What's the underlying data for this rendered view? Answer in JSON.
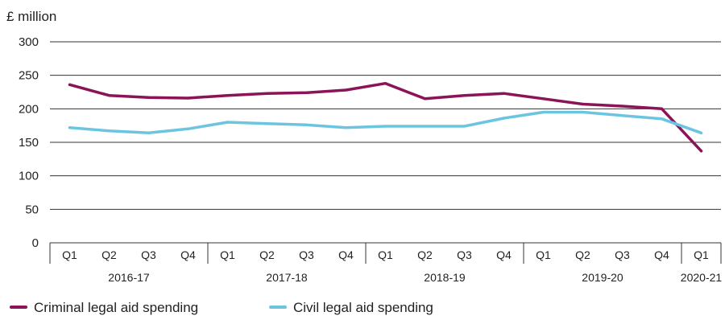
{
  "chart_data": {
    "type": "line",
    "ylabel": "£ million",
    "ylim": [
      0,
      300
    ],
    "yticks": [
      0,
      50,
      100,
      150,
      200,
      250,
      300
    ],
    "grid": true,
    "legend_position": "bottom-left",
    "quarters": [
      "Q1",
      "Q2",
      "Q3",
      "Q4",
      "Q1",
      "Q2",
      "Q3",
      "Q4",
      "Q1",
      "Q2",
      "Q3",
      "Q4",
      "Q1",
      "Q2",
      "Q3",
      "Q4",
      "Q1"
    ],
    "years": [
      {
        "label": "2016-17",
        "quarters": 4
      },
      {
        "label": "2017-18",
        "quarters": 4
      },
      {
        "label": "2018-19",
        "quarters": 4
      },
      {
        "label": "2019-20",
        "quarters": 4
      },
      {
        "label": "2020-21",
        "quarters": 1
      }
    ],
    "series": [
      {
        "name": "Criminal legal aid spending",
        "color": "#8a1456",
        "values": [
          236,
          220,
          217,
          216,
          220,
          223,
          224,
          228,
          238,
          215,
          220,
          223,
          215,
          207,
          204,
          200,
          137
        ]
      },
      {
        "name": "Civil legal aid spending",
        "color": "#6cc5e0",
        "values": [
          172,
          167,
          164,
          170,
          180,
          178,
          176,
          172,
          174,
          174,
          174,
          186,
          195,
          195,
          190,
          185,
          164
        ]
      }
    ]
  }
}
